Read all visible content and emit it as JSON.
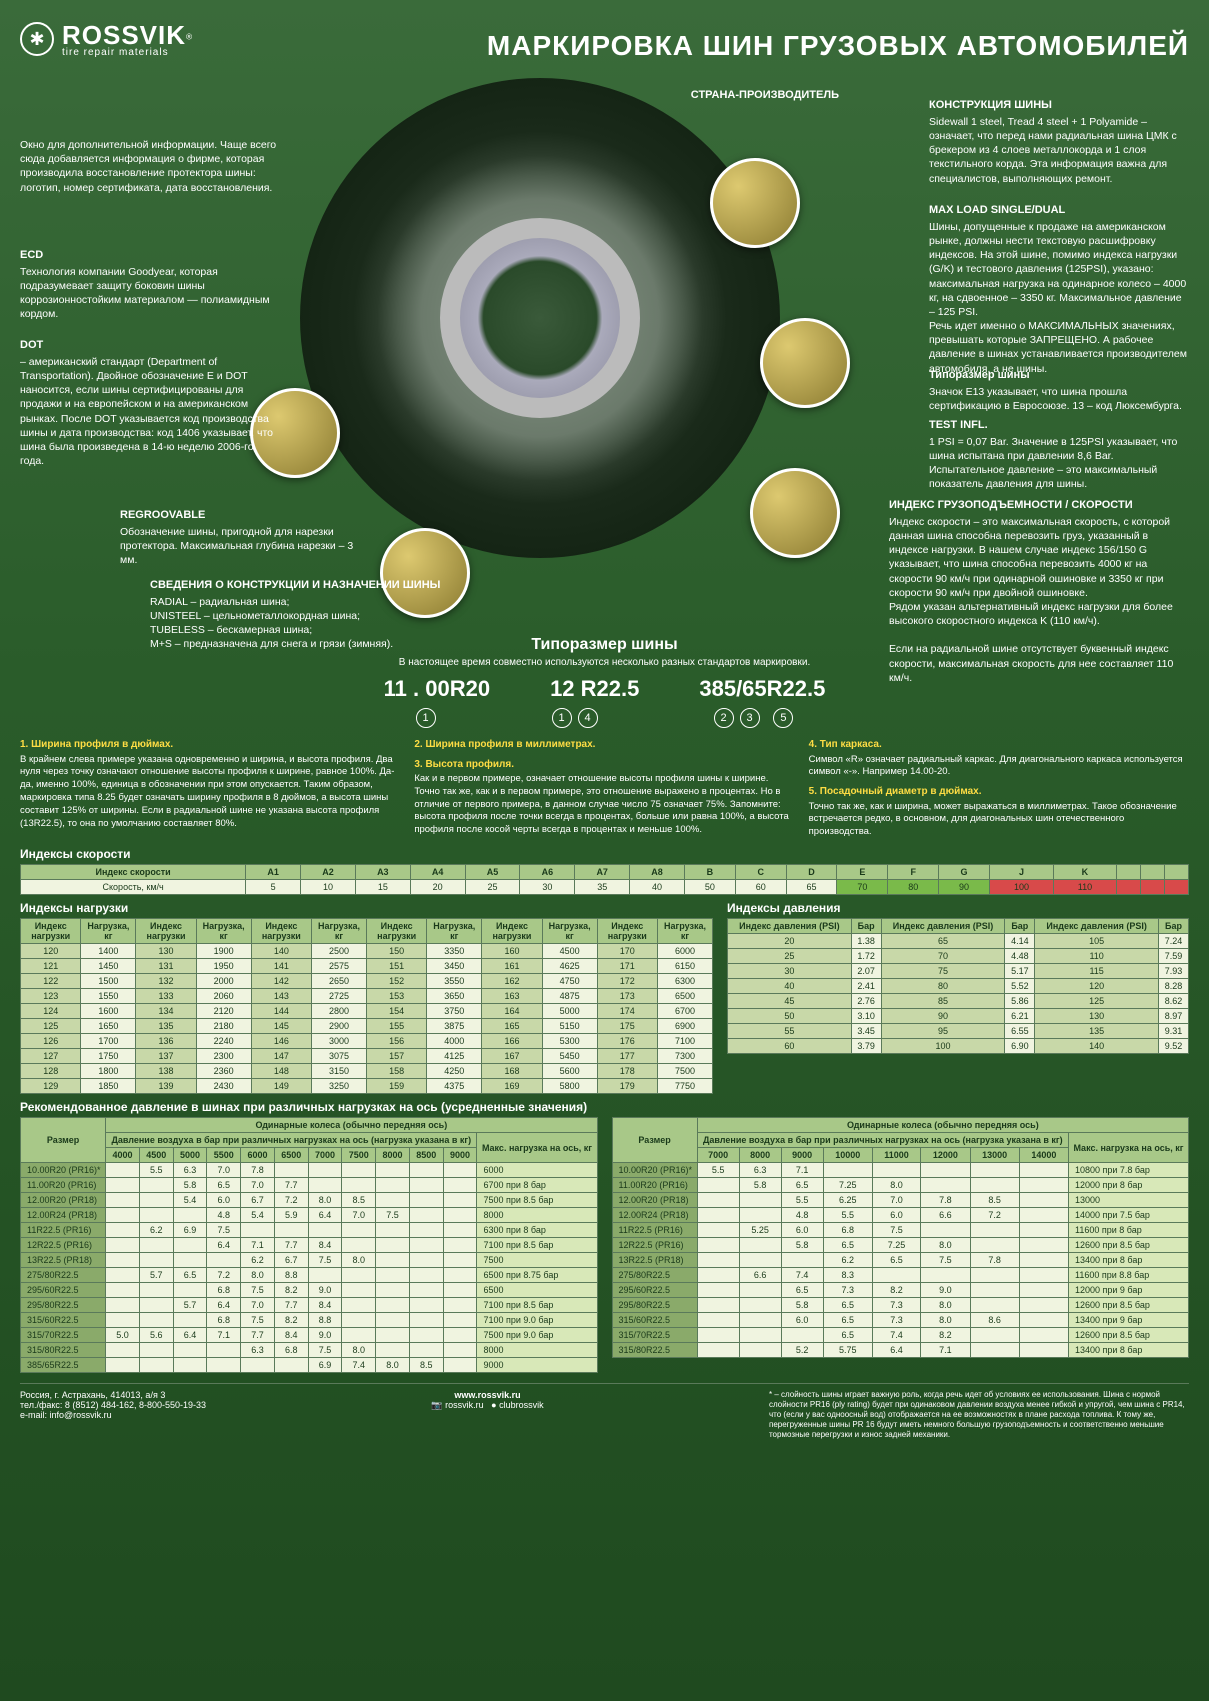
{
  "brand": {
    "name": "ROSSVIK",
    "sub": "tire repair materials",
    "mark": "✱",
    "reg": "®"
  },
  "title": "МАРКИРОВКА ШИН ГРУЗОВЫХ АВТОМОБИЛЕЙ",
  "callouts": {
    "c1": {
      "h": "",
      "t": "Окно для дополнительной информации. Чаще всего сюда добавляется информация о фирме, которая производила восстановление протектора шины: логотип, номер сертификата, дата восстановления."
    },
    "c2": {
      "h": "ECD",
      "t": "Технология компании Goodyear, которая подразумевает защиту боковин шины коррозионностойким материалом — полиамидным кордом."
    },
    "c3": {
      "h": "DOT",
      "t": " – американский стандарт (Department of Transportation). Двойное обозначение E и DOT наносится, если шины сертифицированы для продажи и на европейском и на американском рынках. После DOT указывается код производства шины и дата производства: код 1406 указывает, что шина была произведена в 14-ю неделю 2006-го года."
    },
    "c4": {
      "h": "REGROOVABLE",
      "t": "Обозначение шины, пригодной для нарезки протектора. Максимальная глубина нарезки – 3 мм."
    },
    "c5": {
      "h": "СВЕДЕНИЯ О КОНСТРУКЦИИ И НАЗНАЧЕНИИ ШИНЫ",
      "t": "RADIAL – радиальная шина;\nUNISTEEL – цельнометаллокордная шина;\nTUBELESS – бескамерная шина;\nM+S – предназначена для снега и грязи (зимняя)."
    },
    "c6": {
      "h": "СТРАНА-ПРОИЗВОДИТЕЛЬ",
      "t": ""
    },
    "c7": {
      "h": "КОНСТРУКЦИЯ ШИНЫ",
      "t": "Sidewall 1 steel, Tread 4 steel + 1 Polyamide – означает, что перед нами радиальная шина ЦМК с брекером из 4 слоев металлокорда и 1 слоя текстильного корда. Эта информация важна для специалистов, выполняющих ремонт."
    },
    "c8": {
      "h": "MAX LOAD SINGLE/DUAL",
      "t": "Шины, допущенные к продаже на американском рынке, должны нести текстовую расшифровку индексов. На этой шине, помимо индекса нагрузки (G/K) и тестового давления (125PSI), указано: максимальная нагрузка на одинарное колесо – 4000 кг, на сдвоенное – 3350 кг. Максимальное давление – 125 PSI.\nРечь идет именно о МАКСИМАЛЬНЫХ значениях, превышать которые ЗАПРЕЩЕНО. А рабочее давление в шинах устанавливается производителем автомобиля, а не шины."
    },
    "c9": {
      "h": "Типоразмер шины",
      "t": "Значок E13 указывает, что шина прошла сертификацию в Евросоюзе. 13 – код Люксембурга."
    },
    "c10": {
      "h": "TEST INFL.",
      "t": "1 PSI = 0,07 Bar. Значение в 125PSI указывает, что шина испытана при давлении 8,6 Bar. Испытательное давление – это максимальный показатель давления для шины."
    },
    "c11": {
      "h": "ИНДЕКС ГРУЗОПОДЪЕМНОСТИ / СКОРОСТИ",
      "t": "Индекс скорости – это максимальная скорость, с которой данная шина способна перевозить груз, указанный в индексе нагрузки. В нашем случае индекс 156/150 G указывает, что шина способна перевозить 4000 кг на скорости 90 км/ч при одинарной ошиновке и 3350 кг при скорости 90 км/ч при двойной ошиновке.\nРядом указан альтернативный индекс нагрузки для более высокого скоростного индекса K (110 км/ч).\n\nЕсли на радиальной шине отсутствует буквенный индекс скорости, максимальная скорость для нее составляет 110 км/ч."
    }
  },
  "sizes": {
    "h": "Типоразмер шины",
    "sub": "В настоящее время совместно используются несколько разных стандартов маркировки.",
    "s1": "11 . 00R20",
    "s2": "12 R22.5",
    "s3": "385/65R22.5"
  },
  "nums": {
    "r1": "①",
    "r14": "①④",
    "r235": "②③  ⑤"
  },
  "legend": {
    "l1": {
      "h": "1. Ширина профиля в дюймах.",
      "t": "В крайнем слева примере указана одновременно и ширина, и высота профиля. Два нуля через точку означают отношение высоты профиля к ширине, равное 100%. Да-да, именно 100%, единица в обозначении при этом опускается. Таким образом, маркировка типа 8.25 будет означать ширину профиля в 8 дюймов, а высота шины составит 125% от ширины. Если в радиальной шине не указана высота профиля (13R22.5), то она по умолчанию составляет 80%."
    },
    "l2": {
      "h": "2. Ширина профиля в миллиметрах.",
      "t": ""
    },
    "l3": {
      "h": "3. Высота профиля.",
      "t": "Как и в первом примере, означает отношение высоты профиля шины к ширине. Точно так же, как и в первом примере, это отношение выражено в процентах. Но в отличие от первого примера, в данном случае число 75 означает 75%. Запомните: высота профиля после точки всегда в процентах, больше или равна 100%, а высота профиля после косой черты всегда в процентах и меньше 100%."
    },
    "l4": {
      "h": "4. Тип каркаса.",
      "t": "Символ «R» означает радиальный каркас. Для диагонального каркаса используется символ «-». Например 14.00-20."
    },
    "l5": {
      "h": "5. Посадочный диаметр в дюймах.",
      "t": "Точно так же, как и ширина, может выражаться в миллиметрах. Такое обозначение встречается редко, в основном, для диагональных шин отечественного производства."
    }
  },
  "speed": {
    "title": "Индексы скорости",
    "h": [
      "Индекс скорости",
      "A1",
      "A2",
      "A3",
      "A4",
      "A5",
      "A6",
      "A7",
      "A8",
      "B",
      "C",
      "D",
      "E",
      "F",
      "G",
      "J",
      "K",
      "",
      "",
      ""
    ],
    "r": [
      "Скорость, км/ч",
      "5",
      "10",
      "15",
      "20",
      "25",
      "30",
      "35",
      "40",
      "50",
      "60",
      "65",
      "70",
      "80",
      "90",
      "100",
      "110",
      "",
      "",
      ""
    ]
  },
  "load": {
    "title": "Индексы нагрузки",
    "head": [
      "Индекс нагрузки",
      "Нагрузка, кг",
      "Индекс нагрузки",
      "Нагрузка, кг",
      "Индекс нагрузки",
      "Нагрузка, кг",
      "Индекс нагрузки",
      "Нагрузка, кг",
      "Индекс нагрузки",
      "Нагрузка, кг",
      "Индекс нагрузки",
      "Нагрузка, кг"
    ],
    "rows": [
      [
        "120",
        "1400",
        "130",
        "1900",
        "140",
        "2500",
        "150",
        "3350",
        "160",
        "4500",
        "170",
        "6000"
      ],
      [
        "121",
        "1450",
        "131",
        "1950",
        "141",
        "2575",
        "151",
        "3450",
        "161",
        "4625",
        "171",
        "6150"
      ],
      [
        "122",
        "1500",
        "132",
        "2000",
        "142",
        "2650",
        "152",
        "3550",
        "162",
        "4750",
        "172",
        "6300"
      ],
      [
        "123",
        "1550",
        "133",
        "2060",
        "143",
        "2725",
        "153",
        "3650",
        "163",
        "4875",
        "173",
        "6500"
      ],
      [
        "124",
        "1600",
        "134",
        "2120",
        "144",
        "2800",
        "154",
        "3750",
        "164",
        "5000",
        "174",
        "6700"
      ],
      [
        "125",
        "1650",
        "135",
        "2180",
        "145",
        "2900",
        "155",
        "3875",
        "165",
        "5150",
        "175",
        "6900"
      ],
      [
        "126",
        "1700",
        "136",
        "2240",
        "146",
        "3000",
        "156",
        "4000",
        "166",
        "5300",
        "176",
        "7100"
      ],
      [
        "127",
        "1750",
        "137",
        "2300",
        "147",
        "3075",
        "157",
        "4125",
        "167",
        "5450",
        "177",
        "7300"
      ],
      [
        "128",
        "1800",
        "138",
        "2360",
        "148",
        "3150",
        "158",
        "4250",
        "168",
        "5600",
        "178",
        "7500"
      ],
      [
        "129",
        "1850",
        "139",
        "2430",
        "149",
        "3250",
        "159",
        "4375",
        "169",
        "5800",
        "179",
        "7750"
      ]
    ]
  },
  "press": {
    "title": "Индексы давления",
    "head": [
      "Индекс давления (PSI)",
      "Бар",
      "Индекс давления (PSI)",
      "Бар",
      "Индекс давления (PSI)",
      "Бар"
    ],
    "rows": [
      [
        "20",
        "1.38",
        "65",
        "4.14",
        "105",
        "7.24"
      ],
      [
        "25",
        "1.72",
        "70",
        "4.48",
        "110",
        "7.59"
      ],
      [
        "30",
        "2.07",
        "75",
        "5.17",
        "115",
        "7.93"
      ],
      [
        "40",
        "2.41",
        "80",
        "5.52",
        "120",
        "8.28"
      ],
      [
        "45",
        "2.76",
        "85",
        "5.86",
        "125",
        "8.62"
      ],
      [
        "50",
        "3.10",
        "90",
        "6.21",
        "130",
        "8.97"
      ],
      [
        "55",
        "3.45",
        "95",
        "6.55",
        "135",
        "9.31"
      ],
      [
        "60",
        "3.79",
        "100",
        "6.90",
        "140",
        "9.52"
      ]
    ]
  },
  "rec": {
    "title": "Рекомендованное давление в шинах при различных нагрузках на ось (усредненные значения)",
    "axle": "Одинарные колеса (обычно передняя ось)",
    "sub": "Давление воздуха в бар при различных нагрузках на ось (нагрузка указана в кг)",
    "max": "Макс. нагрузка на ось, кг",
    "sizeH": "Размер",
    "cols1": [
      "4000",
      "4500",
      "5000",
      "5500",
      "6000",
      "6500",
      "7000",
      "7500",
      "8000",
      "8500",
      "9000"
    ],
    "cols2": [
      "7000",
      "8000",
      "9000",
      "10000",
      "11000",
      "12000",
      "13000",
      "14000"
    ],
    "rows1": [
      [
        "10.00R20 (PR16)*",
        "",
        "5.5",
        "6.3",
        "7.0",
        "7.8",
        "",
        "",
        "",
        "",
        "",
        "",
        "6000"
      ],
      [
        "11.00R20 (PR16)",
        "",
        "",
        "5.8",
        "6.5",
        "7.0",
        "7.7",
        "",
        "",
        "",
        "",
        "",
        "6700 при 8 бар"
      ],
      [
        "12.00R20 (PR18)",
        "",
        "",
        "5.4",
        "6.0",
        "6.7",
        "7.2",
        "8.0",
        "8.5",
        "",
        "",
        "",
        "7500 при 8.5 бар"
      ],
      [
        "12.00R24 (PR18)",
        "",
        "",
        "",
        "4.8",
        "5.4",
        "5.9",
        "6.4",
        "7.0",
        "7.5",
        "",
        "",
        "8000"
      ],
      [
        "11R22.5 (PR16)",
        "",
        "6.2",
        "6.9",
        "7.5",
        "",
        "",
        "",
        "",
        "",
        "",
        "",
        "6300 при 8 бар"
      ],
      [
        "12R22.5 (PR16)",
        "",
        "",
        "",
        "6.4",
        "7.1",
        "7.7",
        "8.4",
        "",
        "",
        "",
        "",
        "7100 при 8.5 бар"
      ],
      [
        "13R22.5 (PR18)",
        "",
        "",
        "",
        "",
        "6.2",
        "6.7",
        "7.5",
        "8.0",
        "",
        "",
        "",
        "7500"
      ],
      [
        "275/80R22.5",
        "",
        "5.7",
        "6.5",
        "7.2",
        "8.0",
        "8.8",
        "",
        "",
        "",
        "",
        "",
        "6500 при 8.75 бар"
      ],
      [
        "295/60R22.5",
        "",
        "",
        "",
        "6.8",
        "7.5",
        "8.2",
        "9.0",
        "",
        "",
        "",
        "",
        "6500"
      ],
      [
        "295/80R22.5",
        "",
        "",
        "5.7",
        "6.4",
        "7.0",
        "7.7",
        "8.4",
        "",
        "",
        "",
        "",
        "7100 при 8.5 бар"
      ],
      [
        "315/60R22.5",
        "",
        "",
        "",
        "6.8",
        "7.5",
        "8.2",
        "8.8",
        "",
        "",
        "",
        "",
        "7100 при 9.0 бар"
      ],
      [
        "315/70R22.5",
        "5.0",
        "5.6",
        "6.4",
        "7.1",
        "7.7",
        "8.4",
        "9.0",
        "",
        "",
        "",
        "",
        "7500 при 9.0 бар"
      ],
      [
        "315/80R22.5",
        "",
        "",
        "",
        "",
        "6.3",
        "6.8",
        "7.5",
        "8.0",
        "",
        "",
        "",
        "8000"
      ],
      [
        "385/65R22.5",
        "",
        "",
        "",
        "",
        "",
        "",
        "6.9",
        "7.4",
        "8.0",
        "8.5",
        "",
        "9000"
      ]
    ],
    "rows2": [
      [
        "10.00R20 (PR16)*",
        "5.5",
        "6.3",
        "7.1",
        "",
        "",
        "",
        "",
        "",
        "10800 при 7.8 бар"
      ],
      [
        "11.00R20 (PR16)",
        "",
        "5.8",
        "6.5",
        "7.25",
        "8.0",
        "",
        "",
        "",
        "12000 при 8 бар"
      ],
      [
        "12.00R20 (PR18)",
        "",
        "",
        "5.5",
        "6.25",
        "7.0",
        "7.8",
        "8.5",
        "",
        "13000"
      ],
      [
        "12.00R24 (PR18)",
        "",
        "",
        "4.8",
        "5.5",
        "6.0",
        "6.6",
        "7.2",
        "",
        "14000 при 7.5 бар"
      ],
      [
        "11R22.5 (PR16)",
        "",
        "5.25",
        "6.0",
        "6.8",
        "7.5",
        "",
        "",
        "",
        "11600 при 8 бар"
      ],
      [
        "12R22.5 (PR16)",
        "",
        "",
        "5.8",
        "6.5",
        "7.25",
        "8.0",
        "",
        "",
        "12600 при 8.5 бар"
      ],
      [
        "13R22.5 (PR18)",
        "",
        "",
        "",
        "6.2",
        "6.5",
        "7.5",
        "7.8",
        "",
        "13400 при 8 бар"
      ],
      [
        "275/80R22.5",
        "",
        "6.6",
        "7.4",
        "8.3",
        "",
        "",
        "",
        "",
        "11600 при 8.8 бар"
      ],
      [
        "295/60R22.5",
        "",
        "",
        "6.5",
        "7.3",
        "8.2",
        "9.0",
        "",
        "",
        "12000 при 9 бар"
      ],
      [
        "295/80R22.5",
        "",
        "",
        "5.8",
        "6.5",
        "7.3",
        "8.0",
        "",
        "",
        "12600 при 8.5 бар"
      ],
      [
        "315/60R22.5",
        "",
        "",
        "6.0",
        "6.5",
        "7.3",
        "8.0",
        "8.6",
        "",
        "13400 при 9 бар"
      ],
      [
        "315/70R22.5",
        "",
        "",
        "",
        "6.5",
        "7.4",
        "8.2",
        "",
        "",
        "12600 при 8.5 бар"
      ],
      [
        "315/80R22.5",
        "",
        "",
        "5.2",
        "5.75",
        "6.4",
        "7.1",
        "",
        "",
        "13400 при 8 бар"
      ]
    ]
  },
  "footer": {
    "addr": "Россия, г. Астрахань, 414013, а/я 3\nтел./факс: 8 (8512) 484-162, 8-800-550-19-33\ne-mail: info@rossvik.ru",
    "site": "www.rossvik.ru",
    "soc1": "rossvik.ru",
    "soc2": "clubrossvik",
    "note": "* – слойность шины играет важную роль, когда речь идет об условиях ее использования. Шина с нормой слойности PR16 (ply rating) будет при одинаковом давлении воздуха менее гибкой и упругой, чем шина с PR14, что (если у вас одноосный вод) отображается на ее возможностях в плане расхода топлива. К тому же, перегруженные шины PR 16 будут иметь немного большую грузоподъемность и соответственно меньшие тормозные перегрузки и износ задней механики."
  }
}
